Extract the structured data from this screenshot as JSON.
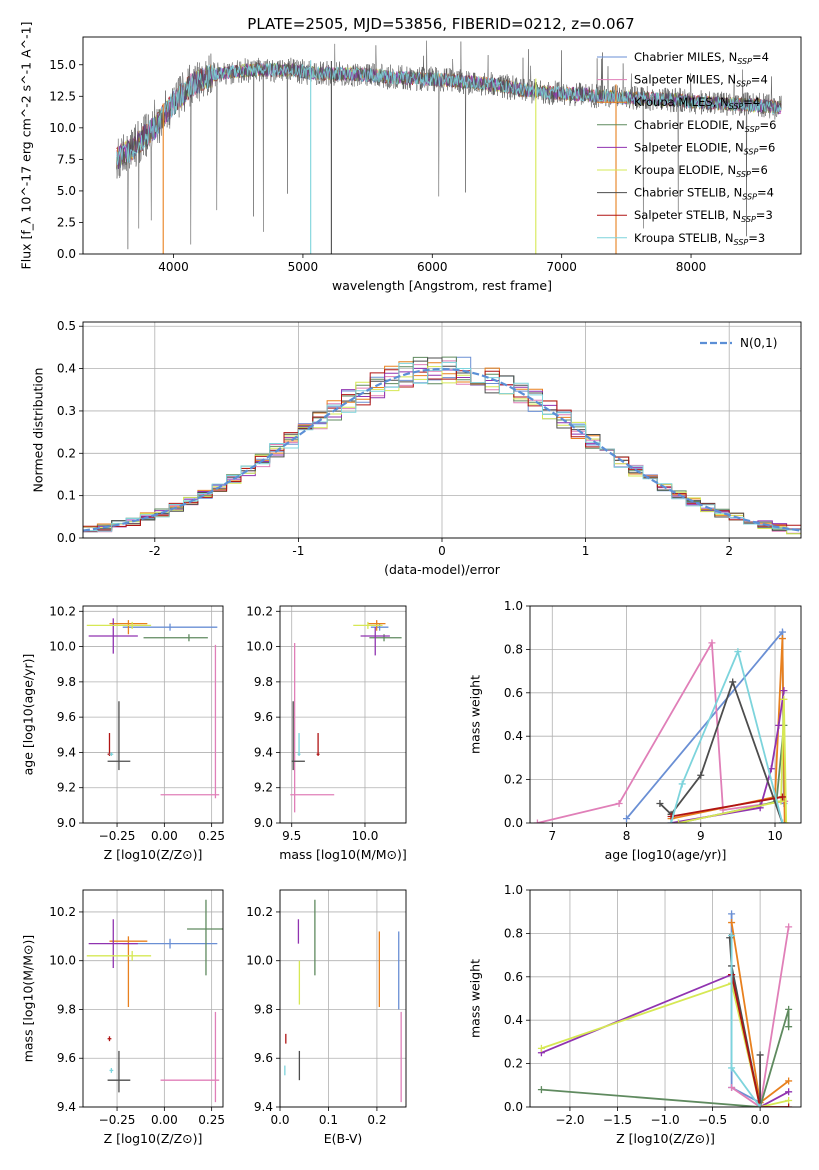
{
  "series_names": [
    "Chabrier MILES",
    "Salpeter MILES",
    "Kroupa MILES",
    "Chabrier ELODIE",
    "Salpeter ELODIE",
    "Kroupa ELODIE",
    "Chabrier STELIB",
    "Salpeter STELIB",
    "Kroupa STELIB"
  ],
  "series_nssp": [
    "4",
    "4",
    "4",
    "6",
    "6",
    "6",
    "4",
    "3",
    "3"
  ],
  "colors": {
    "cm": "#6a8fd4",
    "sm": "#e07fb8",
    "km": "#e8801e",
    "ce": "#5f8a5f",
    "se": "#9033b0",
    "ke": "#d6e854",
    "cs": "#4d4d4d",
    "ss": "#b01414",
    "ks": "#7dd4dc",
    "gauss": "#5b8fd6",
    "grid": "#b0b0b0"
  },
  "chart_data": [
    {
      "id": "spectrum",
      "type": "line",
      "title": "PLATE=2505, MJD=53856, FIBERID=0212, z=0.067",
      "xlabel": "wavelength [Angstrom, rest frame]",
      "ylabel": "Flux [f_λ 10^-17 erg cm^-2 s^-1 A^-1]",
      "xlim": [
        3300,
        8850
      ],
      "ylim": [
        0,
        17.2
      ],
      "xticks": [
        4000,
        5000,
        6000,
        7000,
        8000
      ],
      "yticks": [
        0.0,
        2.5,
        5.0,
        7.5,
        10.0,
        12.5,
        15.0
      ],
      "grid": false,
      "legend": "top-right",
      "continuum": {
        "x": [
          3550,
          3700,
          3850,
          4000,
          4150,
          4300,
          4500,
          4700,
          4900,
          5100,
          5300,
          5500,
          5700,
          5900,
          6100,
          6300,
          6500,
          6700,
          6900,
          7100,
          7300,
          7500,
          7700,
          7900,
          8100,
          8300,
          8500,
          8700
        ],
        "y": [
          7.5,
          8.5,
          10.0,
          12.0,
          13.5,
          14.2,
          14.5,
          14.6,
          14.6,
          14.3,
          14.3,
          14.2,
          14.0,
          13.9,
          13.8,
          13.6,
          13.4,
          13.0,
          12.8,
          12.7,
          12.5,
          12.4,
          12.3,
          12.2,
          12.0,
          11.9,
          11.8,
          11.6
        ]
      },
      "sharp_features": [
        {
          "x": 3920,
          "y": 0.0
        },
        {
          "x": 5060,
          "y": 0.0
        },
        {
          "x": 5220,
          "y": 0.0
        },
        {
          "x": 6800,
          "y": 0.0
        },
        {
          "x": 7420,
          "y": 0.0
        }
      ]
    },
    {
      "id": "residuals",
      "type": "line",
      "xlabel": "(data-model)/error",
      "ylabel": "Normed distribution",
      "xlim": [
        -2.5,
        2.5
      ],
      "ylim": [
        0,
        0.51
      ],
      "xticks": [
        -2,
        -1,
        0,
        1,
        2
      ],
      "yticks": [
        0.0,
        0.1,
        0.2,
        0.3,
        0.4,
        0.5
      ],
      "grid": true,
      "legend": "top-right",
      "gauss_label": "N(0,1)",
      "bin_start": -2.5,
      "bin_width": 0.1
    },
    {
      "id": "z_age",
      "type": "scatter",
      "xlabel": "Z [log10(Z/Z⊙)]",
      "ylabel": "age [log10(age/yr)]",
      "xlim": [
        -0.43,
        0.31
      ],
      "ylim": [
        9.0,
        10.23
      ],
      "xticks": [
        -0.25,
        0.0,
        0.25
      ],
      "xtick_labels": [
        "−0.25",
        "0.00",
        "0.25"
      ],
      "yticks": [
        9.0,
        9.2,
        9.4,
        9.6,
        9.8,
        10.0,
        10.2
      ],
      "grid": true,
      "points": [
        {
          "s": "cm",
          "x": 0.03,
          "xerr": [
            0.25,
            0.25
          ],
          "y": 10.11,
          "yerr": [
            0.02,
            0.02
          ]
        },
        {
          "s": "sm",
          "x": 0.27,
          "xerr": [
            0.29,
            0.02
          ],
          "y": 9.16,
          "yerr": [
            0.02,
            0.85
          ]
        },
        {
          "s": "km",
          "x": -0.19,
          "xerr": [
            0.1,
            0.1
          ],
          "y": 10.13,
          "yerr": [
            0.06,
            0.02
          ]
        },
        {
          "s": "ce",
          "x": 0.13,
          "xerr": [
            0.24,
            0.1
          ],
          "y": 10.05,
          "yerr": [
            0.02,
            0.02
          ]
        },
        {
          "s": "se",
          "x": -0.27,
          "xerr": [
            0.13,
            0.13
          ],
          "y": 10.06,
          "yerr": [
            0.1,
            0.1
          ]
        },
        {
          "s": "ke",
          "x": -0.17,
          "xerr": [
            0.24,
            0.1
          ],
          "y": 10.12,
          "yerr": [
            0.02,
            0.02
          ]
        },
        {
          "s": "cs",
          "x": -0.24,
          "xerr": [
            0.06,
            0.06
          ],
          "y": 9.35,
          "yerr": [
            0.05,
            0.34
          ]
        },
        {
          "s": "ss",
          "x": -0.29,
          "xerr": [
            0.01,
            0.01
          ],
          "y": 9.39,
          "yerr": [
            0.01,
            0.12
          ]
        },
        {
          "s": "ks",
          "x": -0.28,
          "xerr": [
            0.01,
            0.01
          ],
          "y": 9.39,
          "yerr": [
            0.01,
            0.01
          ]
        }
      ]
    },
    {
      "id": "mass_age",
      "type": "scatter",
      "xlabel": "mass [log10(M/M⊙)]",
      "ylabel": "",
      "xlim": [
        9.42,
        10.28
      ],
      "ylim": [
        9.0,
        10.23
      ],
      "xticks": [
        9.5,
        10.0
      ],
      "xtick_labels": [
        "9.5",
        "10.0"
      ],
      "yticks": [
        9.0,
        9.2,
        9.4,
        9.6,
        9.8,
        10.0,
        10.2
      ],
      "grid": true,
      "points": [
        {
          "s": "cm",
          "x": 10.1,
          "xerr": [
            0.06,
            0.06
          ],
          "y": 10.11,
          "yerr": [
            0.02,
            0.02
          ]
        },
        {
          "s": "sm",
          "x": 9.52,
          "xerr": [
            0.03,
            0.27
          ],
          "y": 9.16,
          "yerr": [
            0.1,
            0.86
          ]
        },
        {
          "s": "km",
          "x": 10.08,
          "xerr": [
            0.06,
            0.06
          ],
          "y": 10.13,
          "yerr": [
            0.04,
            0.02
          ]
        },
        {
          "s": "ce",
          "x": 10.13,
          "xerr": [
            0.1,
            0.12
          ],
          "y": 10.05,
          "yerr": [
            0.02,
            0.02
          ]
        },
        {
          "s": "se",
          "x": 10.07,
          "xerr": [
            0.1,
            0.1
          ],
          "y": 10.06,
          "yerr": [
            0.11,
            0.05
          ]
        },
        {
          "s": "ke",
          "x": 10.02,
          "xerr": [
            0.1,
            0.1
          ],
          "y": 10.12,
          "yerr": [
            0.02,
            0.02
          ]
        },
        {
          "s": "cs",
          "x": 9.51,
          "xerr": [
            0.01,
            0.08
          ],
          "y": 9.35,
          "yerr": [
            0.05,
            0.34
          ]
        },
        {
          "s": "ss",
          "x": 9.68,
          "xerr": [
            0.01,
            0.01
          ],
          "y": 9.39,
          "yerr": [
            0.01,
            0.12
          ]
        },
        {
          "s": "ks",
          "x": 9.55,
          "xerr": [
            0.01,
            0.01
          ],
          "y": 9.39,
          "yerr": [
            0.01,
            0.12
          ]
        }
      ]
    },
    {
      "id": "age_weight",
      "type": "line",
      "xlabel": "age [log10(age/yr)]",
      "ylabel": "mass weight",
      "xlim": [
        6.7,
        10.35
      ],
      "ylim": [
        0.0,
        1.0
      ],
      "xticks": [
        7,
        8,
        9,
        10
      ],
      "xtick_labels": [
        "7",
        "8",
        "9",
        "10"
      ],
      "yticks": [
        0.0,
        0.2,
        0.4,
        0.6,
        0.8,
        1.0
      ],
      "grid": true,
      "series": [
        {
          "s": "cm",
          "points": [
            [
              8.0,
              0.02
            ],
            [
              10.1,
              0.88
            ],
            [
              10.12,
              0.09
            ]
          ]
        },
        {
          "s": "sm",
          "points": [
            [
              6.8,
              0.0
            ],
            [
              7.9,
              0.09
            ],
            [
              9.15,
              0.83
            ],
            [
              9.3,
              0.06
            ],
            [
              10.13,
              0.1
            ]
          ]
        },
        {
          "s": "km",
          "points": [
            [
              8.6,
              0.02
            ],
            [
              10.0,
              0.12
            ],
            [
              10.1,
              0.85
            ],
            [
              10.13,
              0.0
            ]
          ]
        },
        {
          "s": "ce",
          "points": [
            [
              8.7,
              0.0
            ],
            [
              9.8,
              0.08
            ],
            [
              10.02,
              0.1
            ],
            [
              10.12,
              0.45
            ]
          ]
        },
        {
          "s": "se",
          "points": [
            [
              8.6,
              0.0
            ],
            [
              9.8,
              0.07
            ],
            [
              9.95,
              0.25
            ],
            [
              10.05,
              0.45
            ],
            [
              10.12,
              0.61
            ]
          ]
        },
        {
          "s": "ke",
          "points": [
            [
              8.7,
              0.0
            ],
            [
              10.08,
              0.1
            ],
            [
              10.12,
              0.57
            ],
            [
              10.15,
              0.0
            ]
          ]
        },
        {
          "s": "cs",
          "points": [
            [
              8.45,
              0.09
            ],
            [
              8.6,
              0.04
            ],
            [
              9.0,
              0.22
            ],
            [
              9.43,
              0.65
            ],
            [
              10.1,
              0.0
            ]
          ]
        },
        {
          "s": "ss",
          "points": [
            [
              8.6,
              0.03
            ],
            [
              10.1,
              0.12
            ]
          ]
        },
        {
          "s": "ks",
          "points": [
            [
              8.6,
              0.0
            ],
            [
              8.75,
              0.18
            ],
            [
              9.5,
              0.79
            ],
            [
              10.1,
              0.0
            ]
          ]
        }
      ]
    },
    {
      "id": "z_mass",
      "type": "scatter",
      "xlabel": "Z [log10(Z/Z⊙)]",
      "ylabel": "mass [log10(M/M⊙)]",
      "xlim": [
        -0.43,
        0.31
      ],
      "ylim": [
        9.4,
        10.29
      ],
      "xticks": [
        -0.25,
        0.0,
        0.25
      ],
      "xtick_labels": [
        "−0.25",
        "0.00",
        "0.25"
      ],
      "yticks": [
        9.4,
        9.6,
        9.8,
        10.0,
        10.2
      ],
      "grid": true,
      "points": [
        {
          "s": "cm",
          "x": 0.03,
          "xerr": [
            0.25,
            0.25
          ],
          "y": 10.07,
          "yerr": [
            0.02,
            0.02
          ]
        },
        {
          "s": "sm",
          "x": 0.27,
          "xerr": [
            0.29,
            0.02
          ],
          "y": 9.51,
          "yerr": [
            0.09,
            0.28
          ]
        },
        {
          "s": "km",
          "x": -0.19,
          "xerr": [
            0.1,
            0.1
          ],
          "y": 10.08,
          "yerr": [
            0.27,
            0.02
          ]
        },
        {
          "s": "ce",
          "x": 0.22,
          "xerr": [
            0.1,
            0.1
          ],
          "y": 10.13,
          "yerr": [
            0.19,
            0.12
          ]
        },
        {
          "s": "se",
          "x": -0.27,
          "xerr": [
            0.13,
            0.13
          ],
          "y": 10.07,
          "yerr": [
            0.1,
            0.1
          ]
        },
        {
          "s": "ke",
          "x": -0.17,
          "xerr": [
            0.24,
            0.1
          ],
          "y": 10.02,
          "yerr": [
            0.02,
            0.02
          ]
        },
        {
          "s": "cs",
          "x": -0.24,
          "xerr": [
            0.06,
            0.06
          ],
          "y": 9.51,
          "yerr": [
            0.05,
            0.12
          ]
        },
        {
          "s": "ss",
          "x": -0.29,
          "xerr": [
            0.01,
            0.01
          ],
          "y": 9.68,
          "yerr": [
            0.01,
            0.01
          ]
        },
        {
          "s": "ks",
          "x": -0.28,
          "xerr": [
            0.01,
            0.01
          ],
          "y": 9.55,
          "yerr": [
            0.01,
            0.01
          ]
        }
      ]
    },
    {
      "id": "ebv_mass",
      "type": "scatter",
      "xlabel": "E(B-V)",
      "ylabel": "",
      "xlim": [
        0.0,
        0.26
      ],
      "ylim": [
        9.4,
        10.29
      ],
      "xticks": [
        0.0,
        0.1,
        0.2
      ],
      "xtick_labels": [
        "0.0",
        "0.1",
        "0.2"
      ],
      "yticks": [
        9.4,
        9.6,
        9.8,
        10.0,
        10.2
      ],
      "grid": true,
      "points": [
        {
          "s": "cm",
          "x": 0.245,
          "y": 10.0,
          "yerr": [
            0.2,
            0.12
          ]
        },
        {
          "s": "sm",
          "x": 0.25,
          "y": 9.55,
          "yerr": [
            0.13,
            0.24
          ]
        },
        {
          "s": "km",
          "x": 0.205,
          "y": 9.95,
          "yerr": [
            0.14,
            0.17
          ]
        },
        {
          "s": "ce",
          "x": 0.072,
          "y": 10.1,
          "yerr": [
            0.16,
            0.15
          ]
        },
        {
          "s": "se",
          "x": 0.038,
          "y": 10.11,
          "yerr": [
            0.04,
            0.06
          ]
        },
        {
          "s": "ke",
          "x": 0.04,
          "y": 9.95,
          "yerr": [
            0.13,
            0.05
          ]
        },
        {
          "s": "cs",
          "x": 0.04,
          "y": 9.55,
          "yerr": [
            0.04,
            0.08
          ]
        },
        {
          "s": "ss",
          "x": 0.012,
          "y": 9.68,
          "yerr": [
            0.02,
            0.02
          ]
        },
        {
          "s": "ks",
          "x": 0.01,
          "y": 9.55,
          "yerr": [
            0.02,
            0.02
          ]
        }
      ]
    },
    {
      "id": "z_weight",
      "type": "line",
      "xlabel": "Z [log10(Z/Z⊙)]",
      "ylabel": "mass weight",
      "xlim": [
        -2.42,
        0.43
      ],
      "ylim": [
        0.0,
        1.0
      ],
      "xticks": [
        -2.0,
        -1.5,
        -1.0,
        -0.5,
        0.0
      ],
      "xtick_labels": [
        "−2.0",
        "−1.5",
        "−1.0",
        "−0.5",
        "0.0"
      ],
      "yticks": [
        0.0,
        0.2,
        0.4,
        0.6,
        0.8,
        1.0
      ],
      "grid": true,
      "series": [
        {
          "s": "cm",
          "points": [
            [
              -0.3,
              0.89
            ],
            [
              -0.3,
              0.09
            ],
            [
              0.0,
              0.02
            ]
          ]
        },
        {
          "s": "sm",
          "points": [
            [
              -0.3,
              0.09
            ],
            [
              0.0,
              0.0
            ],
            [
              0.3,
              0.83
            ]
          ]
        },
        {
          "s": "km",
          "points": [
            [
              -0.3,
              0.85
            ],
            [
              0.0,
              0.02
            ],
            [
              0.3,
              0.12
            ]
          ]
        },
        {
          "s": "ce",
          "points": [
            [
              -2.3,
              0.08
            ],
            [
              0.0,
              0.0
            ],
            [
              0.3,
              0.45
            ],
            [
              0.3,
              0.37
            ]
          ]
        },
        {
          "s": "se",
          "points": [
            [
              -2.3,
              0.25
            ],
            [
              -0.3,
              0.61
            ],
            [
              0.0,
              0.0
            ],
            [
              0.3,
              0.07
            ]
          ]
        },
        {
          "s": "ke",
          "points": [
            [
              -2.3,
              0.27
            ],
            [
              -0.3,
              0.57
            ],
            [
              0.0,
              0.0
            ],
            [
              0.3,
              0.03
            ]
          ]
        },
        {
          "s": "cs",
          "points": [
            [
              -0.32,
              0.78
            ],
            [
              -0.3,
              0.65
            ],
            [
              0.0,
              0.0
            ],
            [
              0.0,
              0.24
            ]
          ]
        },
        {
          "s": "ss",
          "points": [
            [
              -0.3,
              0.61
            ],
            [
              0.0,
              0.0
            ],
            [
              0.3,
              0.0
            ]
          ]
        },
        {
          "s": "ks",
          "points": [
            [
              -0.3,
              0.79
            ],
            [
              -0.3,
              0.18
            ],
            [
              0.0,
              0.0
            ]
          ]
        }
      ]
    }
  ]
}
